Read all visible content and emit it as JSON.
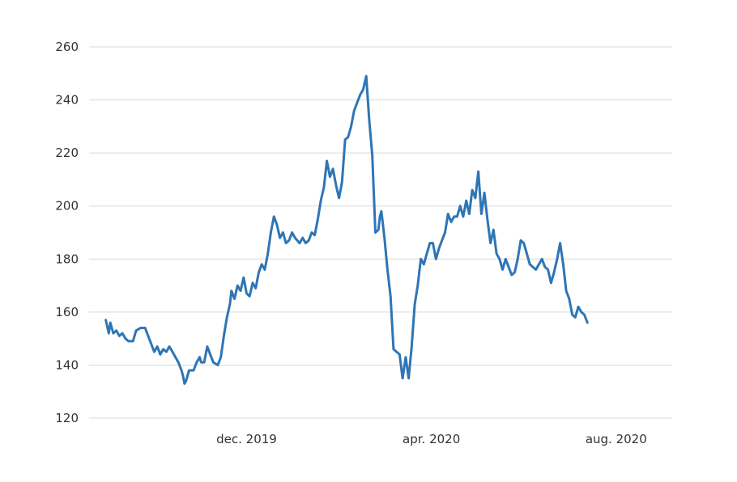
{
  "chart_data": {
    "type": "line",
    "title": "",
    "xlabel": "",
    "ylabel": "",
    "ylim": [
      120,
      260
    ],
    "yticks": [
      "120",
      "140",
      "160",
      "180",
      "200",
      "220",
      "240",
      "260"
    ],
    "xticks": [
      {
        "label": "dec. 2019",
        "date": "2019-12-01"
      },
      {
        "label": "apr. 2020",
        "date": "2020-04-01"
      },
      {
        "label": "aug. 2020",
        "date": "2020-08-01"
      }
    ],
    "xlim": [
      "2019-08-19",
      "2020-09-07"
    ],
    "grid": "horizontal",
    "legend": "none",
    "color": "#2e75b6",
    "series": [
      {
        "points": [
          [
            "2019-08-30",
            157
          ],
          [
            "2019-09-01",
            152
          ],
          [
            "2019-09-02",
            156
          ],
          [
            "2019-09-04",
            152
          ],
          [
            "2019-09-06",
            153
          ],
          [
            "2019-09-08",
            151
          ],
          [
            "2019-09-10",
            152
          ],
          [
            "2019-09-12",
            150
          ],
          [
            "2019-09-14",
            149
          ],
          [
            "2019-09-17",
            149
          ],
          [
            "2019-09-19",
            153
          ],
          [
            "2019-09-22",
            154
          ],
          [
            "2019-09-25",
            154
          ],
          [
            "2019-09-27",
            151
          ],
          [
            "2019-09-29",
            148
          ],
          [
            "2019-10-01",
            145
          ],
          [
            "2019-10-03",
            147
          ],
          [
            "2019-10-05",
            144
          ],
          [
            "2019-10-07",
            146
          ],
          [
            "2019-10-09",
            145
          ],
          [
            "2019-10-11",
            147
          ],
          [
            "2019-10-13",
            145
          ],
          [
            "2019-10-15",
            143
          ],
          [
            "2019-10-17",
            141
          ],
          [
            "2019-10-19",
            138
          ],
          [
            "2019-10-20",
            136
          ],
          [
            "2019-10-21",
            133
          ],
          [
            "2019-10-22",
            134
          ],
          [
            "2019-10-24",
            138
          ],
          [
            "2019-10-27",
            138
          ],
          [
            "2019-10-29",
            141
          ],
          [
            "2019-10-31",
            143
          ],
          [
            "2019-11-01",
            141
          ],
          [
            "2019-11-03",
            141
          ],
          [
            "2019-11-05",
            147
          ],
          [
            "2019-11-07",
            144
          ],
          [
            "2019-11-09",
            141
          ],
          [
            "2019-11-12",
            140
          ],
          [
            "2019-11-14",
            143
          ],
          [
            "2019-11-16",
            151
          ],
          [
            "2019-11-18",
            158
          ],
          [
            "2019-11-20",
            163
          ],
          [
            "2019-11-21",
            168
          ],
          [
            "2019-11-23",
            165
          ],
          [
            "2019-11-25",
            170
          ],
          [
            "2019-11-27",
            168
          ],
          [
            "2019-11-29",
            173
          ],
          [
            "2019-12-01",
            167
          ],
          [
            "2019-12-03",
            166
          ],
          [
            "2019-12-05",
            171
          ],
          [
            "2019-12-07",
            169
          ],
          [
            "2019-12-09",
            175
          ],
          [
            "2019-12-11",
            178
          ],
          [
            "2019-12-13",
            176
          ],
          [
            "2019-12-15",
            182
          ],
          [
            "2019-12-17",
            190
          ],
          [
            "2019-12-19",
            196
          ],
          [
            "2019-12-21",
            193
          ],
          [
            "2019-12-23",
            188
          ],
          [
            "2019-12-25",
            190
          ],
          [
            "2019-12-27",
            186
          ],
          [
            "2019-12-29",
            187
          ],
          [
            "2019-12-31",
            190
          ],
          [
            "2020-01-02",
            188
          ],
          [
            "2020-01-05",
            186
          ],
          [
            "2020-01-07",
            188
          ],
          [
            "2020-01-09",
            186
          ],
          [
            "2020-01-11",
            187
          ],
          [
            "2020-01-13",
            190
          ],
          [
            "2020-01-15",
            189
          ],
          [
            "2020-01-17",
            195
          ],
          [
            "2020-01-19",
            202
          ],
          [
            "2020-01-21",
            207
          ],
          [
            "2020-01-23",
            217
          ],
          [
            "2020-01-25",
            211
          ],
          [
            "2020-01-27",
            214
          ],
          [
            "2020-01-29",
            208
          ],
          [
            "2020-01-31",
            203
          ],
          [
            "2020-02-02",
            209
          ],
          [
            "2020-02-04",
            225
          ],
          [
            "2020-02-06",
            226
          ],
          [
            "2020-02-08",
            230
          ],
          [
            "2020-02-10",
            236
          ],
          [
            "2020-02-12",
            239
          ],
          [
            "2020-02-14",
            242
          ],
          [
            "2020-02-16",
            244
          ],
          [
            "2020-02-18",
            249
          ],
          [
            "2020-02-20",
            232
          ],
          [
            "2020-02-22",
            219
          ],
          [
            "2020-02-24",
            190
          ],
          [
            "2020-02-26",
            191
          ],
          [
            "2020-02-27",
            196
          ],
          [
            "2020-02-28",
            198
          ],
          [
            "2020-03-01",
            188
          ],
          [
            "2020-03-03",
            176
          ],
          [
            "2020-03-05",
            166
          ],
          [
            "2020-03-07",
            146
          ],
          [
            "2020-03-09",
            145
          ],
          [
            "2020-03-11",
            144
          ],
          [
            "2020-03-13",
            135
          ],
          [
            "2020-03-15",
            143
          ],
          [
            "2020-03-17",
            135
          ],
          [
            "2020-03-19",
            147
          ],
          [
            "2020-03-21",
            163
          ],
          [
            "2020-03-23",
            170
          ],
          [
            "2020-03-25",
            180
          ],
          [
            "2020-03-27",
            178
          ],
          [
            "2020-03-29",
            182
          ],
          [
            "2020-03-31",
            186
          ],
          [
            "2020-04-02",
            186
          ],
          [
            "2020-04-04",
            180
          ],
          [
            "2020-04-06",
            184
          ],
          [
            "2020-04-08",
            187
          ],
          [
            "2020-04-10",
            190
          ],
          [
            "2020-04-12",
            197
          ],
          [
            "2020-04-14",
            194
          ],
          [
            "2020-04-16",
            196
          ],
          [
            "2020-04-18",
            196
          ],
          [
            "2020-04-20",
            200
          ],
          [
            "2020-04-22",
            196
          ],
          [
            "2020-04-24",
            202
          ],
          [
            "2020-04-26",
            197
          ],
          [
            "2020-04-28",
            206
          ],
          [
            "2020-04-30",
            203
          ],
          [
            "2020-05-02",
            213
          ],
          [
            "2020-05-04",
            197
          ],
          [
            "2020-05-06",
            205
          ],
          [
            "2020-05-08",
            195
          ],
          [
            "2020-05-10",
            186
          ],
          [
            "2020-05-12",
            191
          ],
          [
            "2020-05-14",
            182
          ],
          [
            "2020-05-16",
            180
          ],
          [
            "2020-05-18",
            176
          ],
          [
            "2020-05-20",
            180
          ],
          [
            "2020-05-22",
            177
          ],
          [
            "2020-05-24",
            174
          ],
          [
            "2020-05-26",
            175
          ],
          [
            "2020-05-28",
            180
          ],
          [
            "2020-05-30",
            187
          ],
          [
            "2020-06-01",
            186
          ],
          [
            "2020-06-03",
            182
          ],
          [
            "2020-06-05",
            178
          ],
          [
            "2020-06-07",
            177
          ],
          [
            "2020-06-09",
            176
          ],
          [
            "2020-06-11",
            178
          ],
          [
            "2020-06-13",
            180
          ],
          [
            "2020-06-15",
            177
          ],
          [
            "2020-06-17",
            176
          ],
          [
            "2020-06-19",
            171
          ],
          [
            "2020-06-21",
            175
          ],
          [
            "2020-06-23",
            180
          ],
          [
            "2020-06-25",
            186
          ],
          [
            "2020-06-27",
            178
          ],
          [
            "2020-06-29",
            168
          ],
          [
            "2020-07-01",
            165
          ],
          [
            "2020-07-03",
            159
          ],
          [
            "2020-07-05",
            158
          ],
          [
            "2020-07-07",
            162
          ],
          [
            "2020-07-09",
            160
          ],
          [
            "2020-07-11",
            159
          ],
          [
            "2020-07-13",
            156
          ]
        ]
      }
    ]
  }
}
